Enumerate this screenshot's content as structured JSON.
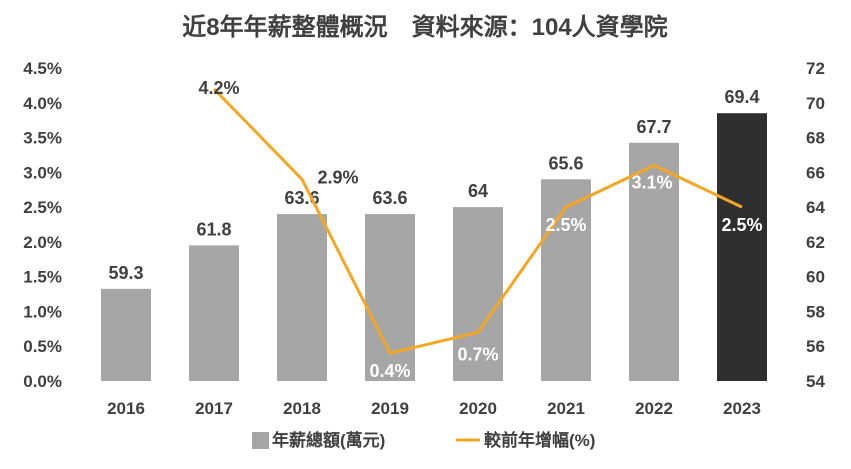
{
  "chart_data": {
    "type": "bar",
    "title": "近8年年薪整體概況　資料來源：104人資學院",
    "categories": [
      "2016",
      "2017",
      "2018",
      "2019",
      "2020",
      "2021",
      "2022",
      "2023"
    ],
    "series": [
      {
        "name": "年薪總額(萬元)",
        "kind": "bar",
        "axis": "right",
        "values": [
          59.3,
          61.8,
          63.6,
          63.6,
          64,
          65.6,
          67.7,
          69.4
        ],
        "labels": [
          "59.3",
          "61.8",
          "63.6",
          "63.6",
          "64",
          "65.6",
          "67.7",
          "69.4"
        ],
        "colors": [
          "#a6a6a6",
          "#a6a6a6",
          "#a6a6a6",
          "#a6a6a6",
          "#a6a6a6",
          "#a6a6a6",
          "#a6a6a6",
          "#2e2e2e"
        ]
      },
      {
        "name": "較前年增幅(%)",
        "kind": "line",
        "axis": "left",
        "values": [
          null,
          4.2,
          2.9,
          0.4,
          0.7,
          2.5,
          3.1,
          2.5
        ],
        "labels": [
          "",
          "4.2%",
          "2.9%",
          "0.4%",
          "0.7%",
          "2.5%",
          "3.1%",
          "2.5%"
        ],
        "color": "#f5a623"
      }
    ],
    "left_axis": {
      "ylim": [
        0,
        4.5
      ],
      "ticks": [
        "0.0%",
        "0.5%",
        "1.0%",
        "1.5%",
        "2.0%",
        "2.5%",
        "3.0%",
        "3.5%",
        "4.0%",
        "4.5%"
      ]
    },
    "right_axis": {
      "ylim": [
        54,
        72
      ],
      "ticks": [
        "54",
        "56",
        "58",
        "60",
        "62",
        "64",
        "66",
        "68",
        "70",
        "72"
      ]
    },
    "grid": false,
    "legend": "bottom"
  }
}
